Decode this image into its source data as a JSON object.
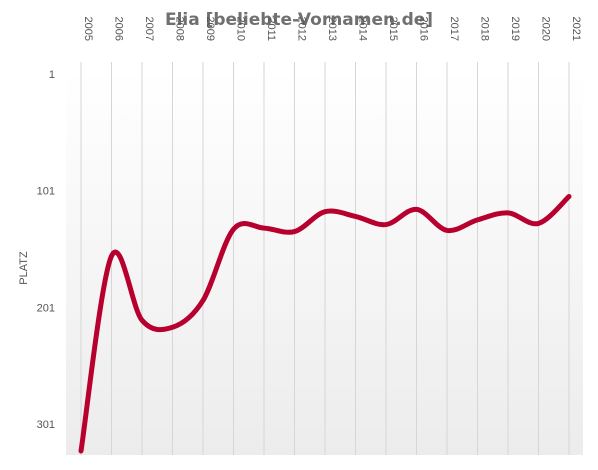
{
  "chart_data": {
    "type": "line",
    "title": "Elia [beliebte-Vornamen.de]",
    "xlabel": "",
    "ylabel": "PLATZ",
    "x": [
      "2005",
      "2006",
      "2007",
      "2008",
      "2009",
      "2010",
      "2011",
      "2012",
      "2013",
      "2014",
      "2015",
      "2016",
      "2017",
      "2018",
      "2019",
      "2020",
      "2021"
    ],
    "series": [
      {
        "values": [
          324,
          157,
          212,
          218,
          195,
          134,
          133,
          136,
          119,
          123,
          130,
          117,
          135,
          126,
          120,
          129,
          106
        ]
      }
    ],
    "y_ticks": [
      1,
      101,
      201,
      301
    ],
    "ylim": [
      1,
      324
    ],
    "y_inverted": true,
    "grid": {
      "vertical": true,
      "horizontal": false
    },
    "background": "vertical-gradient-white-to-light-gray",
    "colors": {
      "series": "#b8002f",
      "title": "#707070",
      "grid": "#d6d6d6"
    }
  }
}
